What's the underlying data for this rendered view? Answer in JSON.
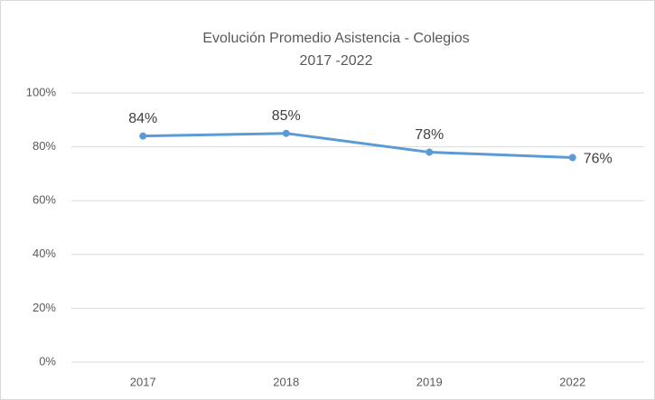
{
  "chart_data": {
    "type": "line",
    "title": "Evolución Promedio Asistencia - Colegios",
    "subtitle": "2017 -2022",
    "categories": [
      "2017",
      "2018",
      "2019",
      "2022"
    ],
    "series": [
      {
        "name": "Asistencia",
        "color": "#5b9bd5",
        "values": [
          84,
          85,
          78,
          76
        ],
        "value_labels": [
          "84%",
          "85%",
          "78%",
          "76%"
        ]
      }
    ],
    "ylim": [
      0,
      100
    ],
    "yticks": [
      {
        "value": 0,
        "label": "0%"
      },
      {
        "value": 20,
        "label": "20%"
      },
      {
        "value": 40,
        "label": "40%"
      },
      {
        "value": 60,
        "label": "60%"
      },
      {
        "value": 80,
        "label": "80%"
      },
      {
        "value": 100,
        "label": "100%"
      }
    ],
    "grid": true
  }
}
